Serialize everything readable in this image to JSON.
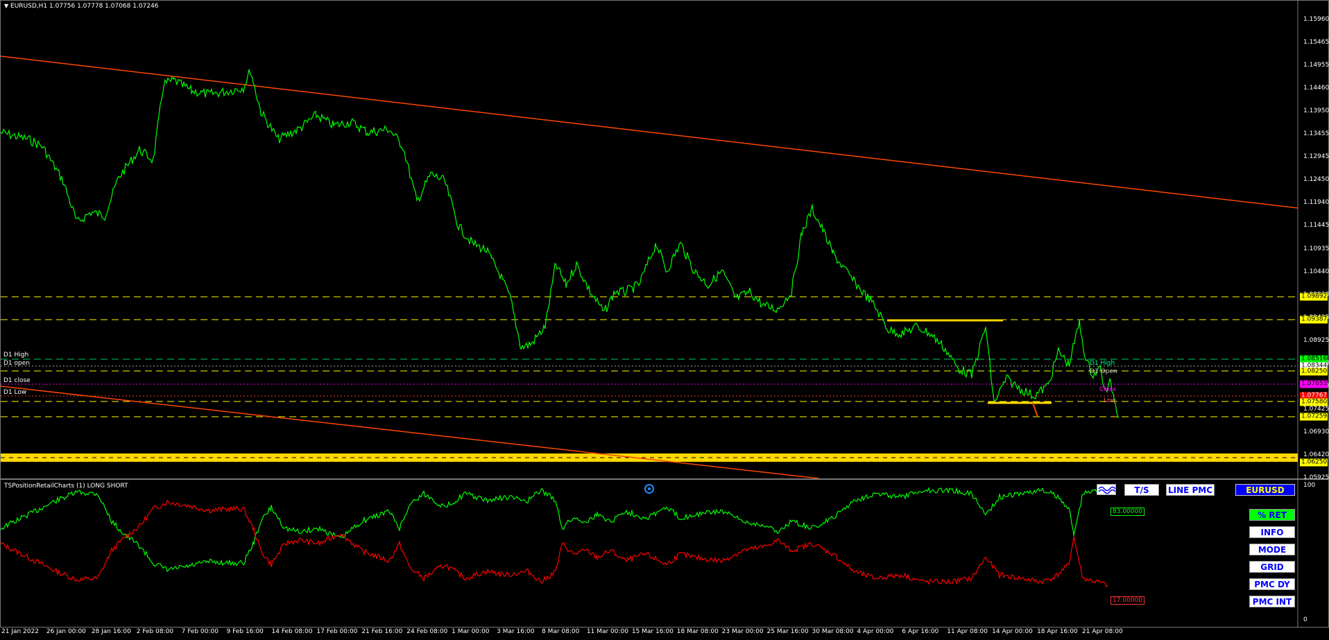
{
  "header": {
    "symbol_info": "EURUSD,H1  1.07756 1.07778 1.07068 1.07246"
  },
  "price_axis": [
    "1.15960",
    "1.15465",
    "1.14955",
    "1.14460",
    "1.13950",
    "1.13455",
    "1.12945",
    "1.12450",
    "1.11940",
    "1.11445",
    "1.10935",
    "1.10440",
    "1.09930",
    "1.09435",
    "1.08925",
    "1.08430",
    "1.07920",
    "1.07425",
    "1.06930",
    "1.06420",
    "1.05925"
  ],
  "price_boxes": {
    "l1": {
      "value": "1.09892",
      "color": "#ffff00"
    },
    "l2": {
      "value": "1.09387",
      "color": "#ffff00"
    },
    "d1high": {
      "value": "1.08516",
      "color": "#00ff00"
    },
    "d1open": {
      "value": "1.08344",
      "color": "#ffffff"
    },
    "l3": {
      "value": "1.08250",
      "color": "#ffff00"
    },
    "d1close": {
      "value": "1.07653",
      "color": "#ff00ff"
    },
    "bid": {
      "value": "1.07767",
      "color": "#ff0000"
    },
    "d1low": {
      "value": "1.07580",
      "color": "#ffff00"
    },
    "l4": {
      "value": "1.07259",
      "color": "#ffff00"
    },
    "l5": {
      "value": "1.06250",
      "color": "#ffff00"
    }
  },
  "levels": {
    "d1_high": "D1 High",
    "d1_open": "D1 open",
    "d1_close": "D1 close",
    "d1_low": "D1 Low",
    "right_high": "D1 High",
    "right_open": "D1 Open",
    "right_close": "Close",
    "right_low": "Low"
  },
  "subwindow": {
    "title": "TSPositionRetailCharts (1) LONG SHORT",
    "axis_top": "100",
    "axis_bottom": "0",
    "long_value": "83.00000",
    "short_value": "17.00000",
    "colors": {
      "long": "#00ff00",
      "short": "#ff0000"
    }
  },
  "toolbar": {
    "ts_label": "T/S",
    "line_pmc_label": "LINE PMC",
    "symbol_label": "EURUSD"
  },
  "side_buttons": {
    "ret": "% RET",
    "info": "INFO",
    "mode": "MODE",
    "grid": "GRID",
    "pmc_dy": "PMC DY",
    "pmc_int": "PMC INT"
  },
  "time_axis": [
    "21 Jan 2022",
    "26 Jan 00:00",
    "28 Jan 16:00",
    "2 Feb 08:00",
    "7 Feb 00:00",
    "9 Feb 16:00",
    "14 Feb 08:00",
    "17 Feb 00:00",
    "21 Feb 16:00",
    "24 Feb 08:00",
    "1 Mar 00:00",
    "3 Mar 16:00",
    "8 Mar 08:00",
    "11 Mar 00:00",
    "15 Mar 16:00",
    "18 Mar 08:00",
    "23 Mar 00:00",
    "25 Mar 16:00",
    "30 Mar 08:00",
    "4 Apr 00:00",
    "6 Apr 16:00",
    "11 Apr 08:00",
    "14 Apr 00:00",
    "18 Apr 16:00",
    "21 Apr 08:00"
  ],
  "colors": {
    "price_line": "#00ff00",
    "trend_line": "#ff4500",
    "level_line": "#ffff00",
    "background": "#000000"
  }
}
